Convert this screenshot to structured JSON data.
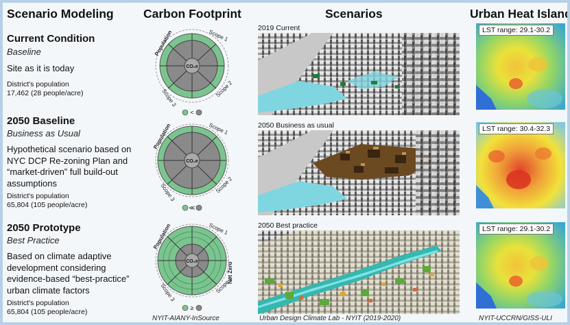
{
  "headers": {
    "scenario_modeling": "Scenario Modeling",
    "carbon_footprint": "Carbon Footprint",
    "scenarios": "Scenarios",
    "urban_heat_island": "Urban Heat Island"
  },
  "rows": [
    {
      "title": "Current Condition",
      "subtitle": "Baseline",
      "description": "Site as it is today",
      "population_label": "District's population",
      "population_value": "17,462 (28 people/acre)",
      "scenario_label": "2019 Current",
      "lst_range": "LST range: 29.1-30.2",
      "wheel_center": "CO₂e",
      "wheel_labels": [
        "Population",
        "Scope 1",
        "Scope 2",
        "Scope 3"
      ],
      "net_zero": "",
      "comparison": "<"
    },
    {
      "title": "2050 Baseline",
      "subtitle": "Business as Usual",
      "description": "Hypothetical scenario based on NYC DCP Re-zoning Plan and “market-driven” full build-out assumptions",
      "population_label": "District's population",
      "population_value": "65,804 (105 people/acre)",
      "scenario_label": "2050 Business as usual",
      "lst_range": "LST range: 30.4-32.3",
      "wheel_center": "CO₂e",
      "wheel_labels": [
        "Population",
        "Scope 1",
        "Scope 2",
        "Scope 3"
      ],
      "net_zero": "",
      "comparison": "≪"
    },
    {
      "title": "2050 Prototype",
      "subtitle": "Best Practice",
      "description": "Based on climate adaptive development considering evidence-based “best-practice” urban climate factors",
      "population_label": "District's population",
      "population_value": "65,804 (105 people/acre)",
      "scenario_label": "2050 Best practice",
      "lst_range": "LST range: 29.1-30.2",
      "wheel_center": "CO₂e",
      "wheel_labels": [
        "Population",
        "Scope 1",
        "Scope 2",
        "Scope 3"
      ],
      "net_zero": "Net Zero",
      "comparison": "≥"
    }
  ],
  "credits": {
    "carbon": "NYIT-AIANY-InSource",
    "scenarios": "Urban Design Climate Lab - NYIT (2019-2020)",
    "heat": "NYIT-UCCRN/GISS-ULI"
  },
  "colors": {
    "wheel_green": "#7cc48f",
    "wheel_gray": "#8a8a8a",
    "frame_border": "#b7d0e7",
    "heat_yellow": "#f2e23a",
    "heat_red": "#e2452b",
    "heat_blue": "#2f7fd6",
    "water": "#7fd6e0"
  }
}
